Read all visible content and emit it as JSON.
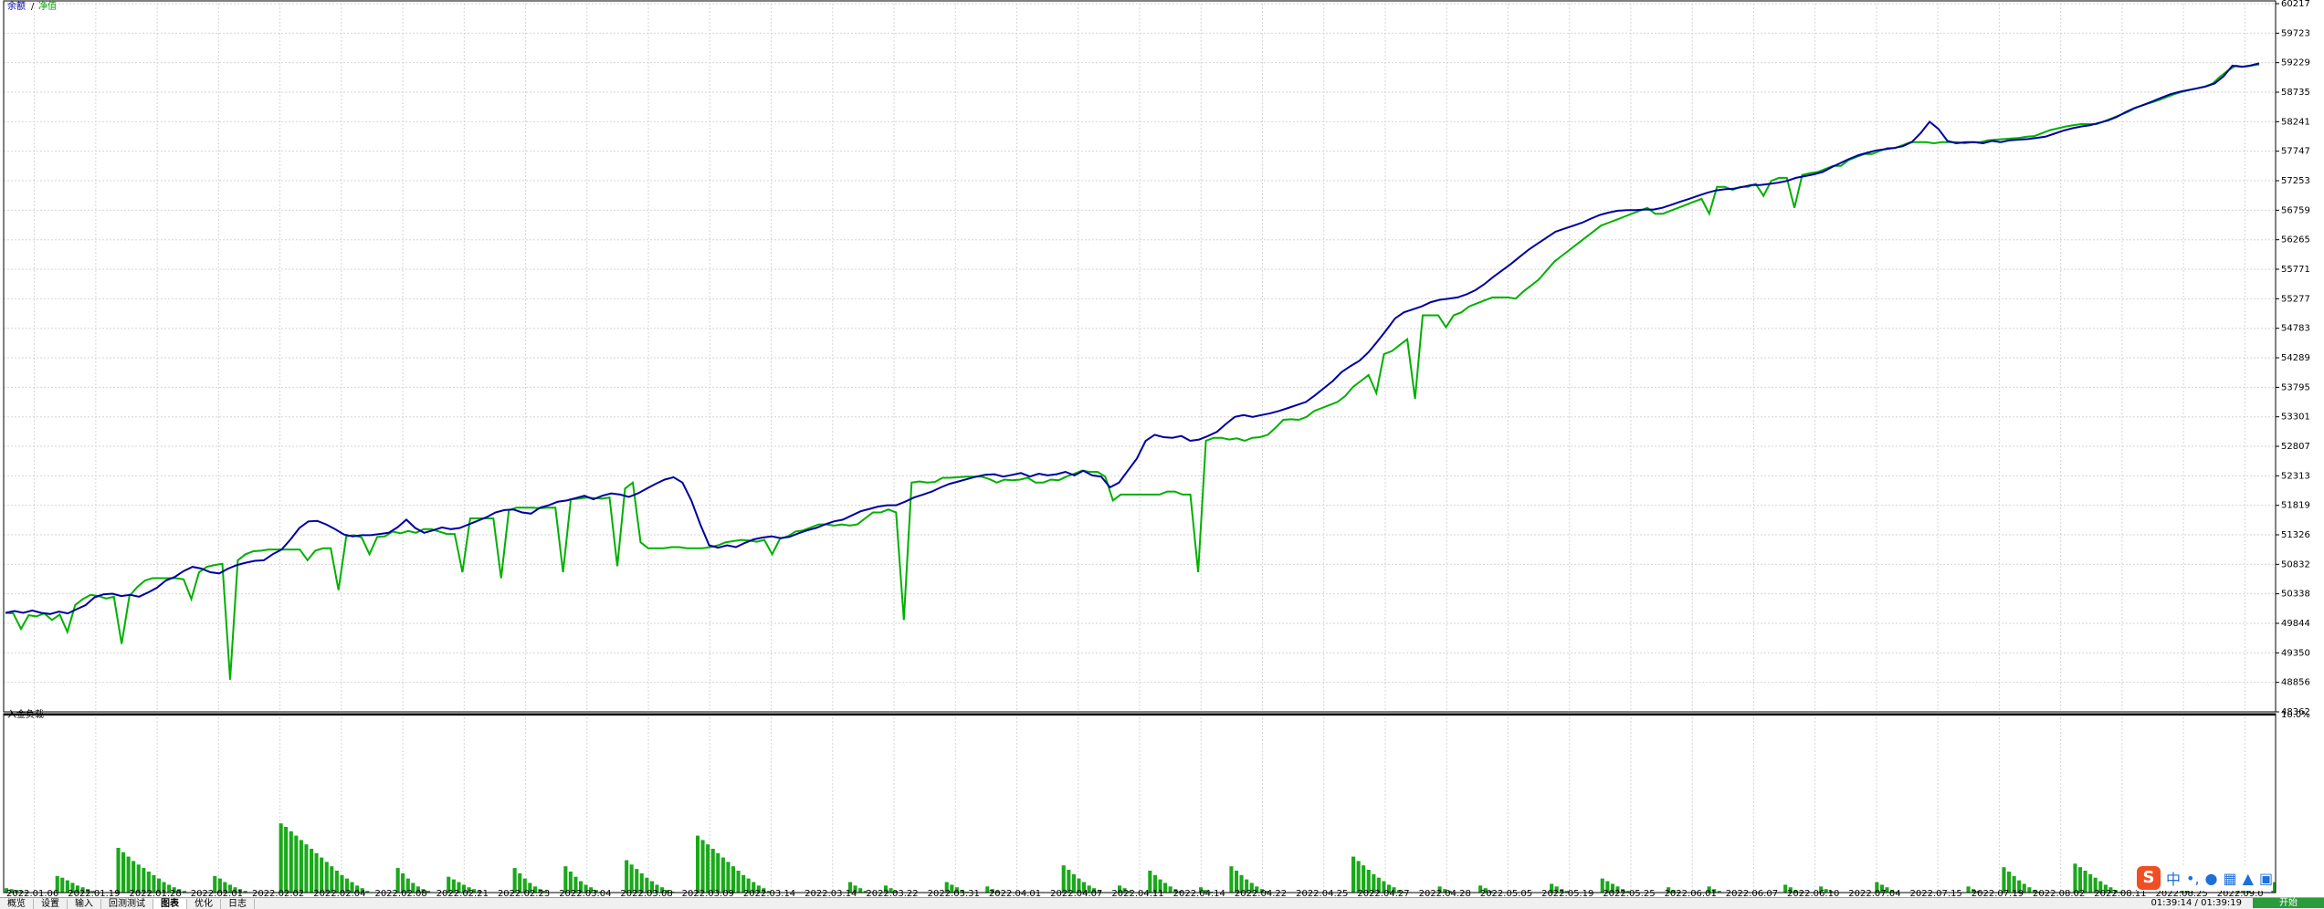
{
  "chart_data": [
    {
      "type": "line",
      "title": "",
      "title_left": "",
      "legend": [
        {
          "label": "余额",
          "color": "#0000a0"
        },
        {
          "label": "净值",
          "color": "#00b000"
        }
      ],
      "legend_sep": "/",
      "ylim": [
        48362,
        60217
      ],
      "y_ticks": [
        60217,
        59723,
        59229,
        58735,
        58241,
        57747,
        57253,
        56759,
        56265,
        55771,
        55277,
        54783,
        54289,
        53795,
        53301,
        52807,
        52313,
        51819,
        51326,
        50832,
        50338,
        49844,
        49350,
        48856,
        48362
      ],
      "x_ticks": [
        "2022.01.06",
        "2022.01.19",
        "2022.01.28",
        "2022.02.01",
        "2022.02.02",
        "2022.02.04",
        "2022.02.08",
        "2022.02.21",
        "2022.02.23",
        "2022.03.04",
        "2022.03.08",
        "2022.03.09",
        "2022.03.14",
        "2022.03.14",
        "2022.03.22",
        "2022.03.31",
        "2022.04.01",
        "2022.04.07",
        "2022.04.11",
        "2022.04.14",
        "2022.04.22",
        "2022.04.25",
        "2022.04.27",
        "2022.04.28",
        "2022.05.05",
        "2022.05.19",
        "2022.05.25",
        "2022.06.01",
        "2022.06.07",
        "2022.06.10",
        "2022.07.04",
        "2022.07.15",
        "2022.07.19",
        "2022.08.02",
        "2022.08.11",
        "2022.08.25",
        "2022.09.0"
      ],
      "grid": true,
      "series": [
        {
          "name": "余额",
          "color": "#0000a0",
          "values": [
            50020,
            50050,
            50020,
            50060,
            50020,
            50000,
            50040,
            50010,
            50080,
            50150,
            50280,
            50330,
            50340,
            50300,
            50320,
            50290,
            50360,
            50440,
            50560,
            50620,
            50720,
            50790,
            50760,
            50700,
            50680,
            50760,
            50820,
            50860,
            50890,
            50900,
            51000,
            51080,
            51250,
            51440,
            51550,
            51560,
            51500,
            51420,
            51330,
            51300,
            51320,
            51320,
            51340,
            51360,
            51450,
            51580,
            51440,
            51360,
            51400,
            51450,
            51420,
            51440,
            51500,
            51560,
            51620,
            51700,
            51740,
            51750,
            51700,
            51680,
            51780,
            51820,
            51880,
            51900,
            51940,
            51980,
            51920,
            51980,
            52020,
            52000,
            51960,
            52020,
            52100,
            52180,
            52250,
            52290,
            52200,
            51900,
            51500,
            51150,
            51110,
            51150,
            51120,
            51190,
            51250,
            51280,
            51300,
            51270,
            51290,
            51350,
            51400,
            51440,
            51500,
            51550,
            51580,
            51650,
            51720,
            51760,
            51800,
            51820,
            51820,
            51880,
            51950,
            52000,
            52050,
            52120,
            52180,
            52220,
            52260,
            52300,
            52330,
            52340,
            52300,
            52330,
            52360,
            52300,
            52350,
            52320,
            52340,
            52380,
            52320,
            52400,
            52320,
            52300,
            52120,
            52200,
            52400,
            52600,
            52900,
            53000,
            52960,
            52950,
            52980,
            52900,
            52920,
            52980,
            53050,
            53180,
            53300,
            53330,
            53300,
            53330,
            53360,
            53400,
            53450,
            53500,
            53550,
            53660,
            53780,
            53900,
            54050,
            54150,
            54240,
            54380,
            54560,
            54750,
            54950,
            55050,
            55100,
            55150,
            55220,
            55260,
            55280,
            55300,
            55350,
            55420,
            55520,
            55640,
            55750,
            55860,
            55980,
            56100,
            56200,
            56300,
            56400,
            56450,
            56500,
            56550,
            56620,
            56680,
            56720,
            56750,
            56760,
            56760,
            56770,
            56770,
            56800,
            56850,
            56900,
            56950,
            57000,
            57050,
            57090,
            57110,
            57120,
            57150,
            57180,
            57180,
            57200,
            57220,
            57250,
            57300,
            57330,
            57360,
            57400,
            57480,
            57550,
            57620,
            57680,
            57720,
            57760,
            57780,
            57800,
            57830,
            57900,
            58050,
            58240,
            58120,
            57920,
            57880,
            57900,
            57900,
            57880,
            57920,
            57900,
            57930,
            57940,
            57950,
            57970,
            57990,
            58040,
            58090,
            58130,
            58160,
            58180,
            58220,
            58260,
            58320,
            58400,
            58470,
            58520,
            58580,
            58640,
            58700,
            58740,
            58770,
            58800,
            58830,
            58880,
            59000,
            59180,
            59160,
            59180,
            59220
          ]
        },
        {
          "name": "净值",
          "color": "#00b000",
          "values": [
            50020,
            50010,
            49750,
            49980,
            49960,
            50010,
            49900,
            49990,
            49700,
            50150,
            50250,
            50320,
            50300,
            50260,
            50290,
            49500,
            50300,
            50450,
            50560,
            50600,
            50600,
            50600,
            50600,
            50580,
            50250,
            50700,
            50790,
            50820,
            50840,
            48900,
            50900,
            51000,
            51050,
            51060,
            51080,
            51080,
            51080,
            51080,
            51080,
            50900,
            51060,
            51100,
            51100,
            50400,
            51300,
            51320,
            51280,
            51000,
            51290,
            51300,
            51380,
            51350,
            51390,
            51360,
            51420,
            51420,
            51380,
            51340,
            51340,
            50700,
            51600,
            51600,
            51600,
            51600,
            50600,
            51740,
            51780,
            51780,
            51780,
            51770,
            51780,
            51780,
            50700,
            51920,
            51930,
            51950,
            51940,
            51930,
            51950,
            50800,
            52100,
            52200,
            51200,
            51100,
            51100,
            51100,
            51120,
            51120,
            51100,
            51100,
            51100,
            51120,
            51150,
            51200,
            51220,
            51240,
            51230,
            51210,
            51240,
            51000,
            51260,
            51300,
            51380,
            51400,
            51450,
            51500,
            51500,
            51480,
            51500,
            51480,
            51500,
            51600,
            51700,
            51700,
            51750,
            51700,
            49900,
            52200,
            52220,
            52200,
            52210,
            52280,
            52280,
            52290,
            52300,
            52300,
            52300,
            52260,
            52200,
            52250,
            52240,
            52250,
            52280,
            52200,
            52200,
            52250,
            52240,
            52300,
            52350,
            52400,
            52380,
            52380,
            52300,
            51900,
            52000,
            52000,
            52000,
            52000,
            52000,
            52000,
            52050,
            52050,
            52000,
            52000,
            50700,
            52900,
            52950,
            52950,
            52920,
            52940,
            52900,
            52950,
            52960,
            53000,
            53120,
            53250,
            53260,
            53250,
            53300,
            53400,
            53450,
            53500,
            53550,
            53650,
            53800,
            53900,
            54000,
            53700,
            54350,
            54400,
            54500,
            54600,
            53600,
            55000,
            55000,
            55000,
            54800,
            55000,
            55050,
            55150,
            55200,
            55250,
            55300,
            55300,
            55300,
            55280,
            55400,
            55500,
            55600,
            55750,
            55900,
            56000,
            56100,
            56200,
            56300,
            56400,
            56500,
            56550,
            56600,
            56650,
            56700,
            56750,
            56800,
            56700,
            56700,
            56750,
            56800,
            56850,
            56900,
            56950,
            56700,
            57150,
            57150,
            57100,
            57150,
            57150,
            57200,
            57000,
            57250,
            57300,
            57300,
            56800,
            57350,
            57380,
            57400,
            57450,
            57500,
            57500,
            57600,
            57650,
            57700,
            57700,
            57750,
            57800,
            57800,
            57850,
            57900,
            57900,
            57900,
            57880,
            57900,
            57900,
            57900,
            57880,
            57900,
            57900,
            57930,
            57940,
            57950,
            57960,
            57970,
            57990,
            58000,
            58050,
            58100,
            58130,
            58160,
            58180,
            58200,
            58200,
            58200,
            58250,
            58300,
            58350,
            58400,
            58470,
            58520,
            58560,
            58600,
            58650,
            58700,
            58740,
            58770,
            58800,
            58830,
            58880,
            59000,
            59100,
            59180,
            59160,
            59180,
            59200
          ]
        }
      ]
    },
    {
      "type": "bar",
      "title": "",
      "title_left": "入金负载",
      "ylim": [
        0,
        10
      ],
      "y_ticks_text": [
        "10.0%"
      ],
      "values": [
        0.25,
        0.2,
        0.15,
        0.1,
        0.05,
        0,
        0,
        0,
        0,
        0,
        0.95,
        0.85,
        0.7,
        0.55,
        0.4,
        0.3,
        0.2,
        0.1,
        0,
        0,
        0,
        0,
        2.55,
        2.3,
        2.05,
        1.8,
        1.6,
        1.4,
        1.2,
        1.0,
        0.8,
        0.6,
        0.45,
        0.3,
        0.2,
        0.1,
        0,
        0,
        0,
        0,
        0,
        0.95,
        0.8,
        0.6,
        0.45,
        0.3,
        0.2,
        0.1,
        0,
        0,
        0,
        0,
        0,
        0,
        3.95,
        3.75,
        3.5,
        3.25,
        3.0,
        2.75,
        2.5,
        2.25,
        2.0,
        1.75,
        1.5,
        1.25,
        1.0,
        0.8,
        0.6,
        0.4,
        0.25,
        0.1,
        0,
        0,
        0,
        0,
        0,
        1.4,
        1.1,
        0.8,
        0.55,
        0.35,
        0.2,
        0.1,
        0,
        0,
        0,
        0.9,
        0.75,
        0.6,
        0.45,
        0.3,
        0.2,
        0.1,
        0,
        0,
        0,
        0,
        0,
        0,
        1.4,
        1.1,
        0.8,
        0.55,
        0.35,
        0.2,
        0.1,
        0,
        0,
        0,
        1.5,
        1.2,
        0.9,
        0.65,
        0.45,
        0.3,
        0.15,
        0.05,
        0,
        0,
        0,
        0,
        1.85,
        1.6,
        1.35,
        1.1,
        0.85,
        0.65,
        0.45,
        0.3,
        0.15,
        0.05,
        0,
        0,
        0,
        0,
        3.25,
        3.0,
        2.75,
        2.5,
        2.25,
        2.0,
        1.75,
        1.5,
        1.25,
        1.0,
        0.8,
        0.6,
        0.4,
        0.25,
        0.1,
        0,
        0,
        0,
        0,
        0,
        0,
        0,
        0,
        0,
        0,
        0,
        0,
        0,
        0,
        0,
        0.6,
        0.4,
        0.25,
        0.1,
        0,
        0,
        0,
        0.4,
        0.25,
        0.1,
        0,
        0,
        0,
        0,
        0,
        0,
        0,
        0,
        0,
        0.6,
        0.45,
        0.3,
        0.15,
        0.05,
        0,
        0,
        0,
        0.35,
        0.2,
        0.1,
        0,
        0,
        0,
        0,
        0,
        0,
        0,
        0,
        0,
        0,
        0,
        0,
        1.55,
        1.3,
        1.05,
        0.8,
        0.6,
        0.4,
        0.25,
        0.1,
        0,
        0,
        0,
        0.4,
        0.25,
        0.1,
        0,
        0,
        0,
        1.25,
        1.0,
        0.75,
        0.55,
        0.35,
        0.2,
        0.1,
        0,
        0,
        0,
        0.3,
        0.15,
        0.05,
        0,
        0,
        0,
        1.5,
        1.25,
        1.0,
        0.75,
        0.55,
        0.35,
        0.2,
        0.1,
        0,
        0,
        0,
        0,
        0,
        0,
        0,
        0,
        0,
        0,
        0,
        0,
        0,
        0,
        0,
        0,
        2.05,
        1.8,
        1.55,
        1.3,
        1.05,
        0.85,
        0.65,
        0.45,
        0.3,
        0.15,
        0.05,
        0,
        0,
        0,
        0,
        0,
        0,
        0.35,
        0.2,
        0.1,
        0,
        0,
        0,
        0,
        0,
        0.4,
        0.25,
        0.1,
        0,
        0,
        0,
        0,
        0,
        0,
        0,
        0,
        0,
        0,
        0,
        0.5,
        0.35,
        0.2,
        0.1,
        0,
        0,
        0,
        0,
        0,
        0,
        0.8,
        0.65,
        0.5,
        0.35,
        0.2,
        0.1,
        0,
        0,
        0,
        0,
        0,
        0,
        0,
        0.3,
        0.15,
        0.05,
        0,
        0,
        0,
        0,
        0,
        0.35,
        0.2,
        0.1,
        0,
        0,
        0,
        0,
        0,
        0,
        0,
        0,
        0,
        0,
        0,
        0,
        0.45,
        0.3,
        0.15,
        0.05,
        0,
        0,
        0,
        0.35,
        0.2,
        0.1,
        0,
        0,
        0,
        0,
        0,
        0,
        0,
        0,
        0.6,
        0.45,
        0.3,
        0.15,
        0.05,
        0,
        0,
        0,
        0,
        0,
        0,
        0,
        0,
        0,
        0,
        0,
        0,
        0,
        0.35,
        0.2,
        0.1,
        0,
        0,
        0,
        0,
        1.45,
        1.2,
        0.95,
        0.7,
        0.5,
        0.3,
        0.15,
        0.05,
        0,
        0,
        0,
        0,
        0,
        0,
        1.65,
        1.45,
        1.25,
        1.05,
        0.85,
        0.65,
        0.45,
        0.3,
        0.15,
        0.05,
        0,
        0,
        0,
        0,
        0,
        0,
        0,
        0,
        0,
        0,
        0,
        0.3,
        0.15,
        0.05,
        0,
        0,
        0,
        0,
        0,
        0,
        0,
        0,
        0.4,
        0.25,
        0.1,
        0,
        0,
        0,
        0,
        0.6
      ]
    }
  ],
  "tabs": [
    "概览",
    "设置",
    "输入",
    "回测测试",
    "图表",
    "优化",
    "日志"
  ],
  "active_tab": 4,
  "clock": "01:39:14 / 01:39:19",
  "start_label": "开始",
  "ime": {
    "logo": "S",
    "mode": "中",
    "punct": "•,"
  }
}
